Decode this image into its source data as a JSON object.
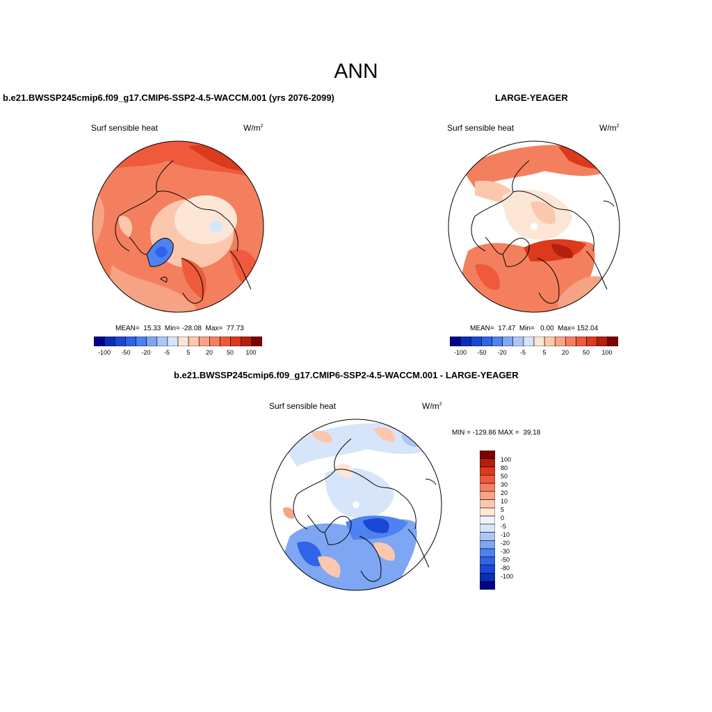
{
  "figure": {
    "season": "ANN"
  },
  "panel_test": {
    "case": "b.e21.BWSSP245cmip6.f09_g17.CMIP6-SSP2-4.5-WACCM.001 (yrs 2076-2099)",
    "variable": "Surf sensible heat",
    "units_base": "W/m",
    "units_exp": "2",
    "stats": "MEAN=  15.33  Min= -28.08  Max=  77.73"
  },
  "panel_ref": {
    "case": "LARGE-YEAGER",
    "variable": "Surf sensible heat",
    "units_base": "W/m",
    "units_exp": "2",
    "stats": "MEAN=  17.47  Min=   0.00  Max= 152.04"
  },
  "panel_diff": {
    "case": "b.e21.BWSSP245cmip6.f09_g17.CMIP6-SSP2-4.5-WACCM.001 - LARGE-YEAGER",
    "variable": "Surf sensible heat",
    "units_base": "W/m",
    "units_exp": "2",
    "stats": "MIN = -129.86 MAX =  39.18"
  },
  "colorbar_h": {
    "colors": [
      "#00008b",
      "#0a2fb4",
      "#1c47d6",
      "#2f63e8",
      "#4e82f0",
      "#7ea6f3",
      "#abc7f6",
      "#d7e5fa",
      "#fde6d6",
      "#fbc8ae",
      "#f7a385",
      "#f47f5e",
      "#ee5a3b",
      "#db3a1c",
      "#b51f0d",
      "#7f0000"
    ],
    "labels": [
      "-100",
      "-50",
      "-20",
      "-5",
      "5",
      "20",
      "50",
      "100"
    ]
  },
  "colorbar_v": {
    "colors": [
      "#7f0000",
      "#b51f0d",
      "#db3a1c",
      "#ee5a3b",
      "#f47f5e",
      "#f7a385",
      "#fbc8ae",
      "#fde6d6",
      "#eef3fb",
      "#d7e5fa",
      "#abc7f6",
      "#7ea6f3",
      "#4e82f0",
      "#2f63e8",
      "#1c47d6",
      "#0a2fb4",
      "#00008b"
    ],
    "labels": [
      "100",
      "80",
      "50",
      "30",
      "20",
      "10",
      "5",
      "0",
      "-5",
      "-10",
      "-20",
      "-30",
      "-50",
      "-80",
      "-100"
    ]
  }
}
